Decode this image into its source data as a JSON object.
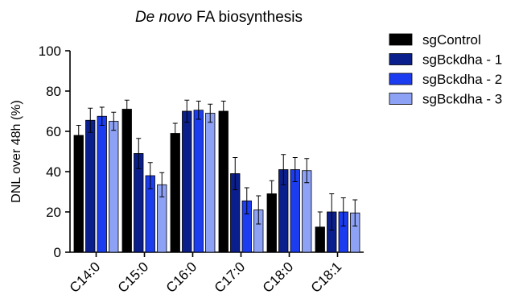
{
  "chart_data": {
    "type": "bar",
    "title_italic": "De novo",
    "title_rest": " FA biosynthesis",
    "ylabel": "DNL over 48h (%)",
    "xlabel": "",
    "ylim": [
      0,
      100
    ],
    "yticks": [
      0,
      20,
      40,
      60,
      80,
      100
    ],
    "categories": [
      "C14:0",
      "C15:0",
      "C16:0",
      "C17:0",
      "C18:0",
      "C18:1"
    ],
    "legend_position": "right",
    "series": [
      {
        "name": "sgControl",
        "color": "#000000",
        "values": [
          58,
          71,
          59,
          70,
          29,
          12.5
        ],
        "errors": [
          5,
          4.5,
          5,
          5,
          6.5,
          7.5
        ]
      },
      {
        "name": "sgBckdha - 1",
        "color": "#0b1f8c",
        "values": [
          65.5,
          49,
          70,
          39,
          41,
          20
        ],
        "errors": [
          6,
          7.5,
          5.5,
          8,
          7.5,
          9
        ]
      },
      {
        "name": "sgBckdha - 2",
        "color": "#1c3cf0",
        "values": [
          67.5,
          38,
          70.5,
          25.5,
          41,
          20
        ],
        "errors": [
          4.5,
          6.5,
          4.5,
          6.5,
          6,
          7
        ]
      },
      {
        "name": "sgBckdha - 3",
        "color": "#8ea2f5",
        "values": [
          65,
          33.5,
          69,
          21,
          40.5,
          19.5
        ],
        "errors": [
          4.5,
          6,
          4.5,
          7,
          6,
          6.5
        ]
      }
    ]
  }
}
